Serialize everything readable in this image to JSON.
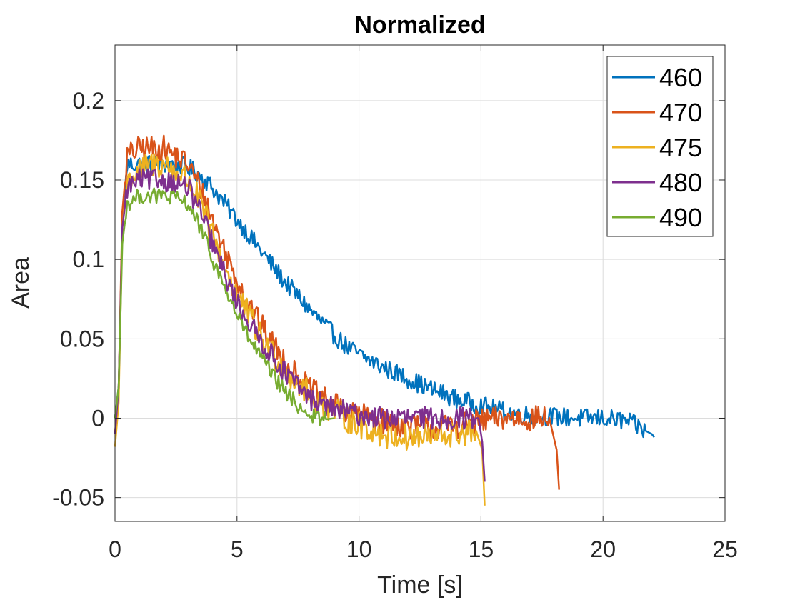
{
  "chart_data": {
    "type": "line",
    "title": "Normalized",
    "xlabel": "Time [s]",
    "ylabel": "Area",
    "xlim": [
      0,
      25
    ],
    "ylim": [
      -0.065,
      0.235
    ],
    "xticks": [
      0,
      5,
      10,
      15,
      20,
      25
    ],
    "xtick_labels": [
      "0",
      "5",
      "10",
      "15",
      "20",
      "25"
    ],
    "yticks": [
      -0.05,
      0,
      0.05,
      0.1,
      0.15,
      0.2
    ],
    "ytick_labels": [
      "-0.05",
      "0",
      "0.05",
      "0.1",
      "0.15",
      "0.2"
    ],
    "grid": true,
    "legend_position": "top-right",
    "series": [
      {
        "name": "460",
        "color": "#0072BD",
        "points": [
          [
            0,
            0
          ],
          [
            0.15,
            0.02
          ],
          [
            0.3,
            0.12
          ],
          [
            0.5,
            0.16
          ],
          [
            1,
            0.16
          ],
          [
            1.5,
            0.16
          ],
          [
            2,
            0.16
          ],
          [
            2.5,
            0.16
          ],
          [
            3,
            0.158
          ],
          [
            3.5,
            0.153
          ],
          [
            4,
            0.145
          ],
          [
            4.5,
            0.135
          ],
          [
            5,
            0.125
          ],
          [
            5.5,
            0.115
          ],
          [
            6,
            0.105
          ],
          [
            6.5,
            0.095
          ],
          [
            7,
            0.085
          ],
          [
            7.5,
            0.077
          ],
          [
            8,
            0.068
          ],
          [
            8.5,
            0.06
          ],
          [
            9,
            0.052
          ],
          [
            9.5,
            0.045
          ],
          [
            10,
            0.04
          ],
          [
            11,
            0.032
          ],
          [
            12,
            0.025
          ],
          [
            13,
            0.018
          ],
          [
            14,
            0.012
          ],
          [
            15,
            0.008
          ],
          [
            16,
            0.004
          ],
          [
            17,
            0.002
          ],
          [
            18,
            0.001
          ],
          [
            19,
            0
          ],
          [
            20,
            0
          ],
          [
            21,
            -0.002
          ],
          [
            22,
            -0.01
          ],
          [
            22.1,
            -0.012
          ]
        ],
        "noise": 0.006
      },
      {
        "name": "470",
        "color": "#D95319",
        "points": [
          [
            0,
            -0.01
          ],
          [
            0.15,
            0.02
          ],
          [
            0.3,
            0.13
          ],
          [
            0.5,
            0.165
          ],
          [
            1,
            0.17
          ],
          [
            1.5,
            0.17
          ],
          [
            2,
            0.17
          ],
          [
            2.5,
            0.165
          ],
          [
            3,
            0.16
          ],
          [
            3.5,
            0.145
          ],
          [
            4,
            0.125
          ],
          [
            4.5,
            0.105
          ],
          [
            5,
            0.088
          ],
          [
            5.5,
            0.072
          ],
          [
            6,
            0.058
          ],
          [
            6.5,
            0.046
          ],
          [
            7,
            0.035
          ],
          [
            7.5,
            0.026
          ],
          [
            8,
            0.018
          ],
          [
            9,
            0.008
          ],
          [
            10,
            0.002
          ],
          [
            11,
            -0.002
          ],
          [
            12,
            -0.005
          ],
          [
            13,
            -0.006
          ],
          [
            14,
            -0.005
          ],
          [
            15,
            -0.002
          ],
          [
            16,
            0
          ],
          [
            17,
            0
          ],
          [
            17.8,
            0
          ],
          [
            18.1,
            -0.02
          ],
          [
            18.2,
            -0.045
          ]
        ],
        "noise": 0.008
      },
      {
        "name": "475",
        "color": "#EDB120",
        "points": [
          [
            0,
            -0.018
          ],
          [
            0.15,
            0.01
          ],
          [
            0.3,
            0.12
          ],
          [
            0.5,
            0.15
          ],
          [
            1,
            0.155
          ],
          [
            1.5,
            0.16
          ],
          [
            2,
            0.16
          ],
          [
            2.5,
            0.155
          ],
          [
            3,
            0.15
          ],
          [
            3.5,
            0.135
          ],
          [
            4,
            0.115
          ],
          [
            4.5,
            0.095
          ],
          [
            5,
            0.078
          ],
          [
            5.5,
            0.064
          ],
          [
            6,
            0.05
          ],
          [
            6.5,
            0.04
          ],
          [
            7,
            0.03
          ],
          [
            7.5,
            0.022
          ],
          [
            8,
            0.014
          ],
          [
            9,
            0.004
          ],
          [
            10,
            -0.004
          ],
          [
            11,
            -0.01
          ],
          [
            12,
            -0.012
          ],
          [
            13,
            -0.012
          ],
          [
            14,
            -0.01
          ],
          [
            14.8,
            -0.008
          ],
          [
            15.05,
            -0.02
          ],
          [
            15.15,
            -0.055
          ]
        ],
        "noise": 0.009
      },
      {
        "name": "480",
        "color": "#7E2F8E",
        "points": [
          [
            0,
            -0.01
          ],
          [
            0.15,
            0.02
          ],
          [
            0.3,
            0.12
          ],
          [
            0.5,
            0.145
          ],
          [
            1,
            0.15
          ],
          [
            1.5,
            0.15
          ],
          [
            2,
            0.15
          ],
          [
            2.5,
            0.148
          ],
          [
            3,
            0.145
          ],
          [
            3.5,
            0.13
          ],
          [
            4,
            0.11
          ],
          [
            4.5,
            0.09
          ],
          [
            5,
            0.073
          ],
          [
            5.5,
            0.06
          ],
          [
            6,
            0.048
          ],
          [
            6.5,
            0.038
          ],
          [
            7,
            0.028
          ],
          [
            7.5,
            0.02
          ],
          [
            8,
            0.012
          ],
          [
            9,
            0.006
          ],
          [
            10,
            0.002
          ],
          [
            11,
            0
          ],
          [
            12,
            0
          ],
          [
            13,
            0
          ],
          [
            14,
            0
          ],
          [
            14.9,
            0
          ],
          [
            15.05,
            -0.015
          ],
          [
            15.15,
            -0.04
          ]
        ],
        "noise": 0.007
      },
      {
        "name": "490",
        "color": "#77AC30",
        "points": [
          [
            0,
            0
          ],
          [
            0.15,
            0.02
          ],
          [
            0.3,
            0.11
          ],
          [
            0.5,
            0.135
          ],
          [
            1,
            0.14
          ],
          [
            1.5,
            0.14
          ],
          [
            2,
            0.14
          ],
          [
            2.5,
            0.138
          ],
          [
            3,
            0.135
          ],
          [
            3.5,
            0.12
          ],
          [
            4,
            0.1
          ],
          [
            4.5,
            0.082
          ],
          [
            5,
            0.065
          ],
          [
            5.5,
            0.05
          ],
          [
            6,
            0.038
          ],
          [
            6.5,
            0.026
          ],
          [
            7,
            0.016
          ],
          [
            7.5,
            0.008
          ],
          [
            8,
            0.002
          ],
          [
            8.5,
            -0.001
          ],
          [
            9,
            0
          ]
        ],
        "noise": 0.005
      }
    ]
  }
}
